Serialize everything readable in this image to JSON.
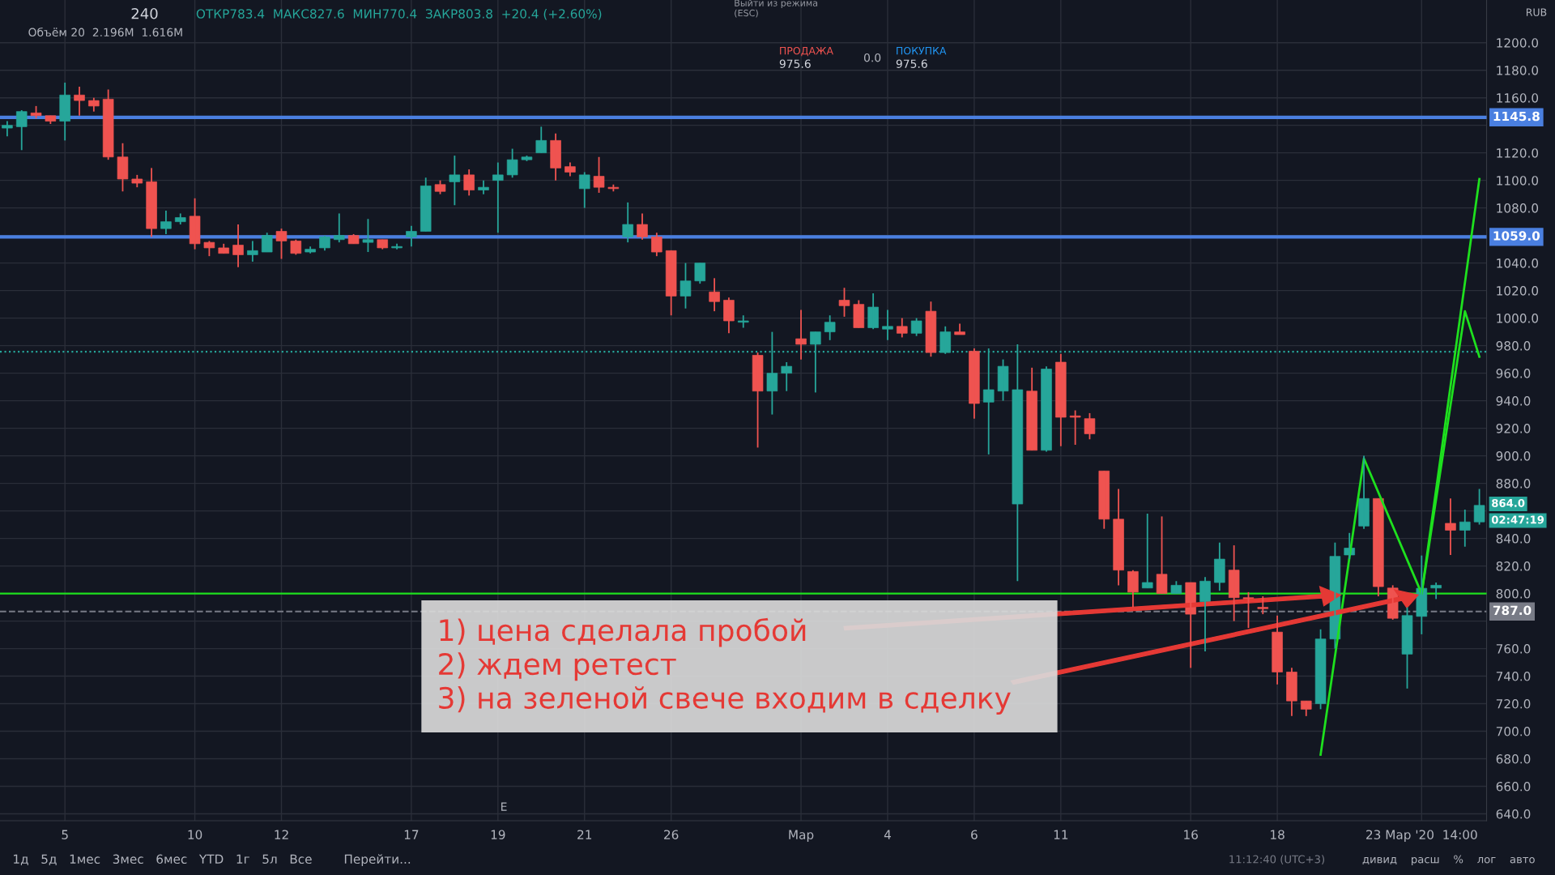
{
  "chart_data": {
    "type": "candlestick",
    "title": "240",
    "subtitle": "ОТКР783.4  МАКС827.6  МИН770.4  ЗАКР803.8  +20.4 (+2.60%)",
    "categories": [
      null,
      null,
      null,
      null,
      "5",
      null,
      null,
      null,
      null,
      null,
      null,
      null,
      null,
      "10",
      null,
      null,
      null,
      null,
      null,
      "12",
      null,
      null,
      null,
      null,
      null,
      null,
      null,
      null,
      "17",
      null,
      null,
      null,
      null,
      null,
      "19",
      null,
      null,
      null,
      null,
      null,
      "21",
      null,
      null,
      null,
      null,
      null,
      "26",
      null,
      null,
      null,
      null,
      null,
      null,
      null,
      null,
      "Мар",
      null,
      null,
      null,
      null,
      null,
      "4",
      null,
      null,
      null,
      null,
      null,
      "6",
      null,
      null,
      null,
      null,
      null,
      "11",
      null,
      null,
      null,
      null,
      null,
      null,
      null,
      null,
      "16",
      null,
      null,
      null,
      null,
      null,
      "18",
      null,
      null,
      null,
      null,
      null,
      null,
      null,
      null,
      null,
      "23 Мар '20  14:00",
      null,
      null,
      null,
      null
    ],
    "ohlc": [
      [
        1138,
        1143,
        1132,
        1140
      ],
      [
        1139,
        1151,
        1122,
        1150
      ],
      [
        1149,
        1154,
        1145,
        1147
      ],
      [
        1147,
        1147,
        1141,
        1143
      ],
      [
        1143,
        1171,
        1129,
        1162
      ],
      [
        1162,
        1168,
        1147,
        1158
      ],
      [
        1158,
        1160,
        1150,
        1154
      ],
      [
        1159,
        1166,
        1115,
        1117
      ],
      [
        1117,
        1127,
        1092,
        1101
      ],
      [
        1101,
        1104,
        1095,
        1098
      ],
      [
        1099,
        1109,
        1059,
        1065
      ],
      [
        1065,
        1078,
        1061,
        1070
      ],
      [
        1070,
        1076,
        1068,
        1073
      ],
      [
        1074,
        1087,
        1050,
        1054
      ],
      [
        1055,
        1056,
        1045,
        1051
      ],
      [
        1051,
        1054,
        1047,
        1047
      ],
      [
        1053,
        1068,
        1037,
        1046
      ],
      [
        1046,
        1056,
        1041,
        1049
      ],
      [
        1048,
        1062,
        1048,
        1060
      ],
      [
        1063,
        1065,
        1043,
        1056
      ],
      [
        1056,
        1057,
        1046,
        1047
      ],
      [
        1048,
        1052,
        1047,
        1050
      ],
      [
        1051,
        1060,
        1049,
        1059
      ],
      [
        1057,
        1076,
        1055,
        1060
      ],
      [
        1060,
        1061,
        1054,
        1054
      ],
      [
        1055,
        1072,
        1048,
        1057
      ],
      [
        1057,
        1057,
        1050,
        1051
      ],
      [
        1051,
        1054,
        1050,
        1052
      ],
      [
        1059,
        1067,
        1052,
        1063
      ],
      [
        1063,
        1102,
        1063,
        1096
      ],
      [
        1097,
        1100,
        1090,
        1092
      ],
      [
        1099,
        1118,
        1082,
        1104
      ],
      [
        1104,
        1108,
        1089,
        1093
      ],
      [
        1093,
        1100,
        1090,
        1095
      ],
      [
        1100,
        1113,
        1062,
        1104
      ],
      [
        1104,
        1123,
        1102,
        1115
      ],
      [
        1115,
        1118,
        1114,
        1117
      ],
      [
        1120,
        1139,
        1120,
        1129
      ],
      [
        1129,
        1134,
        1100,
        1109
      ],
      [
        1110,
        1113,
        1103,
        1106
      ],
      [
        1094,
        1106,
        1080,
        1104
      ],
      [
        1103,
        1117,
        1091,
        1095
      ],
      [
        1095,
        1097,
        1092,
        1094
      ],
      [
        1059,
        1084,
        1055,
        1068
      ],
      [
        1068,
        1076,
        1057,
        1059
      ],
      [
        1059,
        1062,
        1045,
        1048
      ],
      [
        1049,
        1049,
        1002,
        1016
      ],
      [
        1016,
        1040,
        1007,
        1027
      ],
      [
        1027,
        1040,
        1025,
        1040
      ],
      [
        1019,
        1029,
        1005,
        1012
      ],
      [
        1013,
        1015,
        989,
        998
      ],
      [
        997,
        1002,
        993,
        998
      ],
      [
        973,
        975,
        906,
        947
      ],
      [
        947,
        990,
        930,
        960
      ],
      [
        960,
        968,
        947,
        965
      ],
      [
        985,
        1006,
        970,
        981
      ],
      [
        981,
        990,
        946,
        990
      ],
      [
        990,
        1002,
        984,
        997
      ],
      [
        1013,
        1022,
        1001,
        1009
      ],
      [
        1010,
        1013,
        993,
        993
      ],
      [
        993,
        1018,
        992,
        1008
      ],
      [
        992,
        1006,
        984,
        994
      ],
      [
        994,
        1000,
        986,
        989
      ],
      [
        989,
        1000,
        987,
        998
      ],
      [
        1005,
        1012,
        972,
        975
      ],
      [
        975,
        994,
        974,
        990
      ],
      [
        990,
        996,
        988,
        988
      ],
      [
        976,
        978,
        927,
        938
      ],
      [
        939,
        978,
        901,
        948
      ],
      [
        947,
        970,
        940,
        965
      ],
      [
        865,
        981,
        809,
        948
      ],
      [
        947,
        964,
        904,
        904
      ],
      [
        904,
        965,
        903,
        963
      ],
      [
        968,
        974,
        907,
        928
      ],
      [
        929,
        933,
        908,
        928
      ],
      [
        927,
        931,
        912,
        916
      ],
      [
        889,
        889,
        847,
        854
      ],
      [
        854,
        876,
        806,
        817
      ],
      [
        816,
        817,
        790,
        801
      ],
      [
        804,
        858,
        804,
        808
      ],
      [
        814,
        856,
        800,
        800
      ],
      [
        800,
        809,
        800,
        806
      ],
      [
        808,
        808,
        746,
        785
      ],
      [
        794,
        812,
        758,
        809
      ],
      [
        808,
        837,
        802,
        825
      ],
      [
        817,
        835,
        780,
        797
      ],
      [
        797,
        801,
        775,
        796
      ],
      [
        790,
        798,
        785,
        789
      ],
      [
        772,
        784,
        734,
        743
      ],
      [
        743,
        746,
        711,
        722
      ],
      [
        722,
        722,
        711,
        716
      ],
      [
        720,
        774,
        716,
        767
      ],
      [
        767,
        837,
        760,
        827
      ],
      [
        828,
        844,
        825,
        833
      ],
      [
        849,
        900,
        847,
        869
      ],
      [
        869,
        869,
        798,
        805
      ],
      [
        804,
        806,
        781,
        782
      ],
      [
        756,
        790,
        731,
        784
      ],
      [
        783.4,
        827.6,
        770.4,
        803.8
      ],
      [
        804,
        808,
        796,
        806
      ],
      [
        851,
        869,
        828,
        846
      ],
      [
        846,
        861,
        834,
        852
      ],
      [
        852,
        876,
        850,
        864
      ]
    ],
    "colors": [
      "#26a69a",
      "#26a69a",
      "#ef5350",
      "#ef5350",
      "#26a69a",
      "#ef5350",
      "#ef5350",
      "#ef5350",
      "#ef5350",
      "#ef5350",
      "#ef5350",
      "#26a69a",
      "#26a69a",
      "#ef5350",
      "#ef5350",
      "#ef5350",
      "#ef5350",
      "#26a69a",
      "#26a69a",
      "#ef5350",
      "#ef5350",
      "#26a69a",
      "#26a69a",
      "#26a69a",
      "#ef5350",
      "#26a69a",
      "#ef5350",
      "#26a69a",
      "#26a69a",
      "#26a69a",
      "#ef5350",
      "#26a69a",
      "#ef5350",
      "#26a69a",
      "#26a69a",
      "#26a69a",
      "#26a69a",
      "#26a69a",
      "#ef5350",
      "#ef5350",
      "#26a69a",
      "#ef5350",
      "#ef5350",
      "#26a69a",
      "#ef5350",
      "#ef5350",
      "#ef5350",
      "#26a69a",
      "#26a69a",
      "#ef5350",
      "#ef5350",
      "#26a69a",
      "#ef5350",
      "#26a69a",
      "#26a69a",
      "#ef5350",
      "#26a69a",
      "#26a69a",
      "#ef5350",
      "#ef5350",
      "#26a69a",
      "#26a69a",
      "#ef5350",
      "#26a69a",
      "#ef5350",
      "#26a69a",
      "#ef5350",
      "#ef5350",
      "#26a69a",
      "#26a69a",
      "#26a69a",
      "#ef5350",
      "#26a69a",
      "#ef5350",
      "#ef5350",
      "#ef5350",
      "#ef5350",
      "#ef5350",
      "#ef5350",
      "#26a69a",
      "#ef5350",
      "#26a69a",
      "#ef5350",
      "#26a69a",
      "#26a69a",
      "#ef5350",
      "#ef5350",
      "#ef5350",
      "#ef5350",
      "#ef5350",
      "#ef5350",
      "#26a69a",
      "#26a69a",
      "#26a69a",
      "#26a69a",
      "#ef5350",
      "#ef5350",
      "#26a69a",
      "#26a69a",
      "#26a69a",
      "#ef5350",
      "#26a69a",
      "#26a69a"
    ],
    "series": [
      {
        "type": "line",
        "color": "#1ee01e",
        "values": [
          null,
          null,
          null,
          null,
          null,
          null,
          null,
          null,
          null,
          null,
          null,
          null,
          null,
          null,
          null,
          null,
          null,
          null,
          null,
          null,
          null,
          null,
          null,
          null,
          null,
          null,
          null,
          null,
          null,
          null,
          null,
          null,
          null,
          null,
          null,
          null,
          null,
          null,
          null,
          null,
          null,
          null,
          null,
          null,
          null,
          null,
          null,
          null,
          null,
          null,
          null,
          null,
          null,
          null,
          null,
          null,
          null,
          null,
          null,
          null,
          null,
          null,
          null,
          null,
          null,
          null,
          null,
          null,
          null,
          null,
          null,
          null,
          null,
          null,
          null,
          null,
          null,
          null,
          null,
          null,
          null,
          null,
          null,
          null,
          null,
          null,
          null,
          null,
          null,
          null,
          null,
          683,
          null,
          null,
          898,
          null,
          null,
          null,
          800,
          null,
          null,
          null,
          1101
        ]
      },
      {
        "type": "line",
        "color": "#1ee01e",
        "values": [
          null,
          null,
          null,
          null,
          null,
          null,
          null,
          null,
          null,
          null,
          null,
          null,
          null,
          null,
          null,
          null,
          null,
          null,
          null,
          null,
          null,
          null,
          null,
          null,
          null,
          null,
          null,
          null,
          null,
          null,
          null,
          null,
          null,
          null,
          null,
          null,
          null,
          null,
          null,
          null,
          null,
          null,
          null,
          null,
          null,
          null,
          null,
          null,
          null,
          null,
          null,
          null,
          null,
          null,
          null,
          null,
          null,
          null,
          null,
          null,
          null,
          null,
          null,
          null,
          null,
          null,
          null,
          null,
          null,
          null,
          null,
          null,
          null,
          null,
          null,
          null,
          null,
          null,
          null,
          null,
          null,
          null,
          null,
          null,
          null,
          null,
          null,
          null,
          null,
          null,
          null,
          null,
          null,
          null,
          null,
          null,
          null,
          null,
          800,
          null,
          null,
          1005,
          972
        ]
      }
    ],
    "ylim": [
      635,
      1231
    ],
    "yticks": [
      {
        "value": 640,
        "label": "640.0"
      },
      {
        "value": 660,
        "label": "660.0"
      },
      {
        "value": 680,
        "label": "680.0"
      },
      {
        "value": 700,
        "label": "700.0"
      },
      {
        "value": 720,
        "label": "720.0"
      },
      {
        "value": 740,
        "label": "740.0"
      },
      {
        "value": 760,
        "label": "760.0"
      },
      {
        "value": 780,
        "label": null
      },
      {
        "value": 800,
        "label": "800.0"
      },
      {
        "value": 820,
        "label": "820.0"
      },
      {
        "value": 840,
        "label": "840.0"
      },
      {
        "value": 860,
        "label": null
      },
      {
        "value": 880,
        "label": "880.0"
      },
      {
        "value": 900,
        "label": "900.0"
      },
      {
        "value": 920,
        "label": "920.0"
      },
      {
        "value": 940,
        "label": "940.0"
      },
      {
        "value": 960,
        "label": "960.0"
      },
      {
        "value": 980,
        "label": "980.0"
      },
      {
        "value": 1000,
        "label": "1000.0"
      },
      {
        "value": 1020,
        "label": "1020.0"
      },
      {
        "value": 1040,
        "label": "1040.0"
      },
      {
        "value": 1060,
        "label": null
      },
      {
        "value": 1080,
        "label": "1080.0"
      },
      {
        "value": 1100,
        "label": "1100.0"
      },
      {
        "value": 1120,
        "label": "1120.0"
      },
      {
        "value": 1140,
        "label": null
      },
      {
        "value": 1160,
        "label": "1160.0"
      },
      {
        "value": 1180,
        "label": "1180.0"
      },
      {
        "value": 1200,
        "label": "1200.0"
      }
    ],
    "grid": true,
    "ref_lines": [
      {
        "axis": "y",
        "value": 1145.8,
        "label": "1145.8",
        "color": "#4a7fe0",
        "line_style": "solid"
      },
      {
        "axis": "y",
        "value": 1059.0,
        "label": "1059.0",
        "color": "#4a7fe0",
        "line_style": "solid"
      },
      {
        "axis": "y",
        "value": 800,
        "color": "#1ee01e",
        "line_style": "solid"
      },
      {
        "axis": "y",
        "value": 975.6,
        "color": "#26a69a",
        "line_style": "dotted"
      },
      {
        "axis": "y",
        "value": 787.0,
        "label": "787.0",
        "color": "#787b86",
        "line_style": "dashed"
      }
    ],
    "annotations": [
      "Объём 20  2.196M  1.616M",
      "1) цена сделала пробой\n2) ждем ретест\n3) на зеленой свече входим в сделку",
      "ПРОДАЖА",
      "975.6",
      "0.0",
      "ПОКУПКА",
      "975.6",
      "Выйти из режима\n(ESC)",
      "864.0",
      "02:47:19",
      "RUB",
      "1д   5д   1мес   3мес   6мес   YTD   1г   5л   Все        Перейти...",
      "11:12:40 (UTC+3)",
      "дивид    расш    %    лог    авто",
      "E"
    ]
  }
}
